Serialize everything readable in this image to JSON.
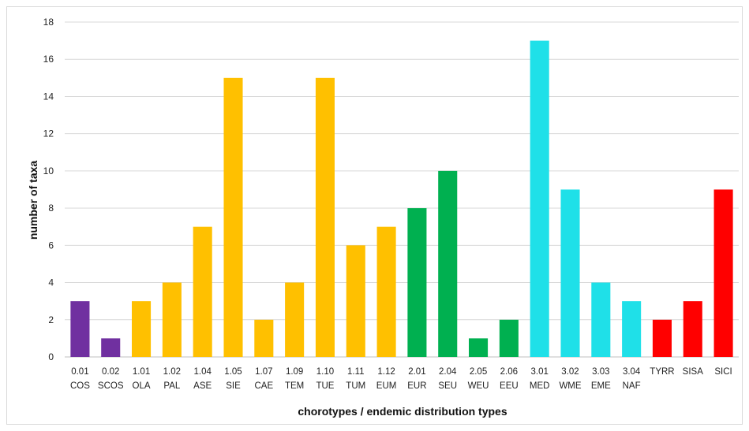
{
  "chart_data": {
    "type": "bar",
    "title": "",
    "xlabel": "chorotypes / endemic distribution types",
    "ylabel": "number of taxa",
    "ylim": [
      0,
      18
    ],
    "yticks": [
      0,
      2,
      4,
      6,
      8,
      10,
      12,
      14,
      16,
      18
    ],
    "grid": true,
    "legend": "none",
    "categories": [
      {
        "code": "0.01",
        "label": "COS"
      },
      {
        "code": "0.02",
        "label": "SCOS"
      },
      {
        "code": "1.01",
        "label": "OLA"
      },
      {
        "code": "1.02",
        "label": "PAL"
      },
      {
        "code": "1.04",
        "label": "ASE"
      },
      {
        "code": "1.05",
        "label": "SIE"
      },
      {
        "code": "1.07",
        "label": "CAE"
      },
      {
        "code": "1.09",
        "label": "TEM"
      },
      {
        "code": "1.10",
        "label": "TUE"
      },
      {
        "code": "1.11",
        "label": "TUM"
      },
      {
        "code": "1.12",
        "label": "EUM"
      },
      {
        "code": "2.01",
        "label": "EUR"
      },
      {
        "code": "2.04",
        "label": "SEU"
      },
      {
        "code": "2.05",
        "label": "WEU"
      },
      {
        "code": "2.06",
        "label": "EEU"
      },
      {
        "code": "3.01",
        "label": "MED"
      },
      {
        "code": "3.02",
        "label": "WME"
      },
      {
        "code": "3.03",
        "label": "EME"
      },
      {
        "code": "3.04",
        "label": "NAF"
      },
      {
        "code": "",
        "label": "TYRR"
      },
      {
        "code": "",
        "label": "SISA"
      },
      {
        "code": "",
        "label": "SICI"
      }
    ],
    "values": [
      3,
      1,
      3,
      4,
      7,
      15,
      2,
      4,
      15,
      6,
      7,
      8,
      10,
      1,
      2,
      17,
      9,
      4,
      3,
      2,
      3,
      9
    ],
    "group_colors": {
      "0": "#7030a0",
      "1": "#ffc000",
      "2": "#00b050",
      "3": "#1fe0e8",
      "endemic": "#ff0000"
    },
    "bar_groups": [
      "0",
      "0",
      "1",
      "1",
      "1",
      "1",
      "1",
      "1",
      "1",
      "1",
      "1",
      "2",
      "2",
      "2",
      "2",
      "3",
      "3",
      "3",
      "3",
      "endemic",
      "endemic",
      "endemic"
    ]
  }
}
